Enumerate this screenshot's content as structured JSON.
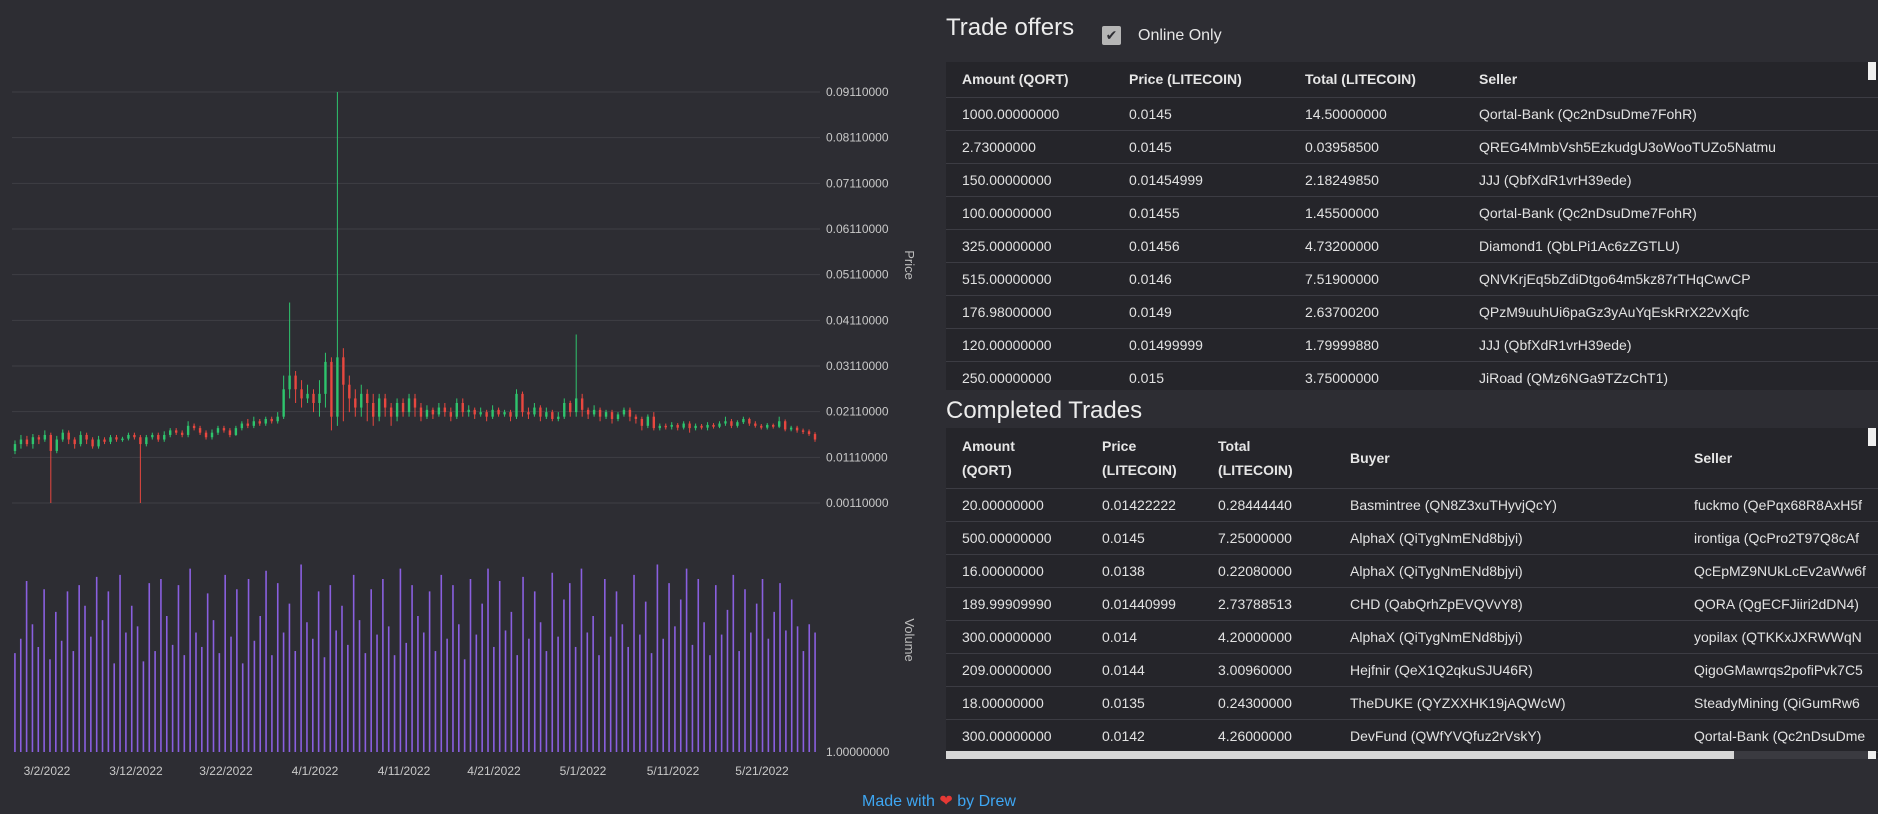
{
  "chart_data": {
    "type": "candlestick",
    "x_ticks": [
      "3/2/2022",
      "3/12/2022",
      "3/22/2022",
      "4/1/2022",
      "4/11/2022",
      "4/21/2022",
      "5/1/2022",
      "5/11/2022",
      "5/21/2022"
    ],
    "price_axis": {
      "label": "Price",
      "ticks": [
        "0.09110000",
        "0.08110000",
        "0.07110000",
        "0.06110000",
        "0.05110000",
        "0.04110000",
        "0.03110000",
        "0.02110000",
        "0.01110000",
        "0.00110000"
      ],
      "range": [
        0.0011,
        0.0911
      ]
    },
    "volume_axis": {
      "label": "Volume",
      "ticks": [
        "1.00000000"
      ]
    },
    "colors": {
      "up": "#2ec46d",
      "down": "#e8473f",
      "volume": "#8a5fe0",
      "grid": "#3e3e45"
    },
    "candles": [
      {
        "o": 0.0125,
        "c": 0.014,
        "h": 0.0148,
        "l": 0.0118
      },
      {
        "o": 0.014,
        "c": 0.015,
        "h": 0.016,
        "l": 0.013
      },
      {
        "o": 0.015,
        "c": 0.014,
        "h": 0.0158,
        "l": 0.0135
      },
      {
        "o": 0.014,
        "c": 0.0155,
        "h": 0.0162,
        "l": 0.013
      },
      {
        "o": 0.0155,
        "c": 0.015,
        "h": 0.016,
        "l": 0.014
      },
      {
        "o": 0.015,
        "c": 0.016,
        "h": 0.017,
        "l": 0.0145
      },
      {
        "o": 0.016,
        "c": 0.0125,
        "h": 0.0165,
        "l": 0.0011
      },
      {
        "o": 0.0125,
        "c": 0.015,
        "h": 0.0158,
        "l": 0.012
      },
      {
        "o": 0.015,
        "c": 0.0165,
        "h": 0.0172,
        "l": 0.0145
      },
      {
        "o": 0.0165,
        "c": 0.015,
        "h": 0.017,
        "l": 0.014
      },
      {
        "o": 0.015,
        "c": 0.014,
        "h": 0.0155,
        "l": 0.013
      },
      {
        "o": 0.014,
        "c": 0.016,
        "h": 0.0168,
        "l": 0.0135
      },
      {
        "o": 0.016,
        "c": 0.015,
        "h": 0.0165,
        "l": 0.014
      },
      {
        "o": 0.015,
        "c": 0.0135,
        "h": 0.0155,
        "l": 0.013
      },
      {
        "o": 0.0135,
        "c": 0.015,
        "h": 0.0158,
        "l": 0.013
      },
      {
        "o": 0.015,
        "c": 0.0145,
        "h": 0.0155,
        "l": 0.014
      },
      {
        "o": 0.0145,
        "c": 0.0155,
        "h": 0.016,
        "l": 0.014
      },
      {
        "o": 0.0155,
        "c": 0.015,
        "h": 0.016,
        "l": 0.0145
      },
      {
        "o": 0.015,
        "c": 0.0152,
        "h": 0.0156,
        "l": 0.0145
      },
      {
        "o": 0.0152,
        "c": 0.016,
        "h": 0.0165,
        "l": 0.0148
      },
      {
        "o": 0.016,
        "c": 0.0155,
        "h": 0.0165,
        "l": 0.015
      },
      {
        "o": 0.0155,
        "c": 0.014,
        "h": 0.016,
        "l": 0.0011
      },
      {
        "o": 0.014,
        "c": 0.0155,
        "h": 0.016,
        "l": 0.0135
      },
      {
        "o": 0.0155,
        "c": 0.016,
        "h": 0.0165,
        "l": 0.015
      },
      {
        "o": 0.016,
        "c": 0.015,
        "h": 0.0165,
        "l": 0.0145
      },
      {
        "o": 0.015,
        "c": 0.016,
        "h": 0.0168,
        "l": 0.0145
      },
      {
        "o": 0.016,
        "c": 0.017,
        "h": 0.0175,
        "l": 0.0155
      },
      {
        "o": 0.017,
        "c": 0.0165,
        "h": 0.0175,
        "l": 0.016
      },
      {
        "o": 0.0165,
        "c": 0.016,
        "h": 0.017,
        "l": 0.0155
      },
      {
        "o": 0.016,
        "c": 0.018,
        "h": 0.019,
        "l": 0.0155
      },
      {
        "o": 0.018,
        "c": 0.0175,
        "h": 0.0185,
        "l": 0.017
      },
      {
        "o": 0.0175,
        "c": 0.0165,
        "h": 0.018,
        "l": 0.016
      },
      {
        "o": 0.0165,
        "c": 0.0155,
        "h": 0.017,
        "l": 0.015
      },
      {
        "o": 0.0155,
        "c": 0.0165,
        "h": 0.0172,
        "l": 0.015
      },
      {
        "o": 0.0165,
        "c": 0.0175,
        "h": 0.018,
        "l": 0.016
      },
      {
        "o": 0.0175,
        "c": 0.017,
        "h": 0.018,
        "l": 0.0165
      },
      {
        "o": 0.017,
        "c": 0.016,
        "h": 0.0175,
        "l": 0.0155
      },
      {
        "o": 0.016,
        "c": 0.0175,
        "h": 0.018,
        "l": 0.0158
      },
      {
        "o": 0.0175,
        "c": 0.0185,
        "h": 0.019,
        "l": 0.017
      },
      {
        "o": 0.0185,
        "c": 0.018,
        "h": 0.0195,
        "l": 0.0175
      },
      {
        "o": 0.018,
        "c": 0.019,
        "h": 0.02,
        "l": 0.0175
      },
      {
        "o": 0.019,
        "c": 0.0185,
        "h": 0.0195,
        "l": 0.018
      },
      {
        "o": 0.0185,
        "c": 0.0195,
        "h": 0.02,
        "l": 0.018
      },
      {
        "o": 0.0195,
        "c": 0.019,
        "h": 0.02,
        "l": 0.0185
      },
      {
        "o": 0.019,
        "c": 0.02,
        "h": 0.021,
        "l": 0.0185
      },
      {
        "o": 0.02,
        "c": 0.026,
        "h": 0.029,
        "l": 0.0195
      },
      {
        "o": 0.026,
        "c": 0.029,
        "h": 0.045,
        "l": 0.024
      },
      {
        "o": 0.029,
        "c": 0.026,
        "h": 0.03,
        "l": 0.023
      },
      {
        "o": 0.026,
        "c": 0.024,
        "h": 0.028,
        "l": 0.022
      },
      {
        "o": 0.024,
        "c": 0.025,
        "h": 0.027,
        "l": 0.023
      },
      {
        "o": 0.025,
        "c": 0.023,
        "h": 0.026,
        "l": 0.021
      },
      {
        "o": 0.023,
        "c": 0.025,
        "h": 0.028,
        "l": 0.02
      },
      {
        "o": 0.025,
        "c": 0.032,
        "h": 0.034,
        "l": 0.022
      },
      {
        "o": 0.032,
        "c": 0.02,
        "h": 0.033,
        "l": 0.017
      },
      {
        "o": 0.02,
        "c": 0.033,
        "h": 0.0911,
        "l": 0.018
      },
      {
        "o": 0.033,
        "c": 0.027,
        "h": 0.035,
        "l": 0.019
      },
      {
        "o": 0.027,
        "c": 0.024,
        "h": 0.029,
        "l": 0.021
      },
      {
        "o": 0.024,
        "c": 0.022,
        "h": 0.026,
        "l": 0.02
      },
      {
        "o": 0.022,
        "c": 0.025,
        "h": 0.027,
        "l": 0.02
      },
      {
        "o": 0.025,
        "c": 0.023,
        "h": 0.026,
        "l": 0.019
      },
      {
        "o": 0.023,
        "c": 0.02,
        "h": 0.025,
        "l": 0.018
      },
      {
        "o": 0.02,
        "c": 0.024,
        "h": 0.025,
        "l": 0.019
      },
      {
        "o": 0.024,
        "c": 0.022,
        "h": 0.025,
        "l": 0.02
      },
      {
        "o": 0.022,
        "c": 0.02,
        "h": 0.023,
        "l": 0.018
      },
      {
        "o": 0.02,
        "c": 0.023,
        "h": 0.024,
        "l": 0.019
      },
      {
        "o": 0.023,
        "c": 0.021,
        "h": 0.024,
        "l": 0.02
      },
      {
        "o": 0.021,
        "c": 0.024,
        "h": 0.025,
        "l": 0.02
      },
      {
        "o": 0.024,
        "c": 0.022,
        "h": 0.025,
        "l": 0.02
      },
      {
        "o": 0.022,
        "c": 0.02,
        "h": 0.023,
        "l": 0.019
      },
      {
        "o": 0.02,
        "c": 0.0215,
        "h": 0.0225,
        "l": 0.0195
      },
      {
        "o": 0.0215,
        "c": 0.0205,
        "h": 0.022,
        "l": 0.0195
      },
      {
        "o": 0.0205,
        "c": 0.022,
        "h": 0.023,
        "l": 0.02
      },
      {
        "o": 0.022,
        "c": 0.021,
        "h": 0.023,
        "l": 0.02
      },
      {
        "o": 0.021,
        "c": 0.02,
        "h": 0.022,
        "l": 0.019
      },
      {
        "o": 0.02,
        "c": 0.023,
        "h": 0.024,
        "l": 0.0195
      },
      {
        "o": 0.023,
        "c": 0.021,
        "h": 0.024,
        "l": 0.02
      },
      {
        "o": 0.021,
        "c": 0.0215,
        "h": 0.0225,
        "l": 0.02
      },
      {
        "o": 0.0215,
        "c": 0.0205,
        "h": 0.022,
        "l": 0.0195
      },
      {
        "o": 0.0205,
        "c": 0.021,
        "h": 0.022,
        "l": 0.02
      },
      {
        "o": 0.021,
        "c": 0.02,
        "h": 0.0215,
        "l": 0.019
      },
      {
        "o": 0.02,
        "c": 0.0215,
        "h": 0.0225,
        "l": 0.0195
      },
      {
        "o": 0.0215,
        "c": 0.0205,
        "h": 0.022,
        "l": 0.02
      },
      {
        "o": 0.0205,
        "c": 0.021,
        "h": 0.0215,
        "l": 0.02
      },
      {
        "o": 0.021,
        "c": 0.02,
        "h": 0.0215,
        "l": 0.019
      },
      {
        "o": 0.02,
        "c": 0.025,
        "h": 0.026,
        "l": 0.0195
      },
      {
        "o": 0.025,
        "c": 0.021,
        "h": 0.0255,
        "l": 0.02
      },
      {
        "o": 0.021,
        "c": 0.0205,
        "h": 0.022,
        "l": 0.0195
      },
      {
        "o": 0.0205,
        "c": 0.022,
        "h": 0.023,
        "l": 0.02
      },
      {
        "o": 0.022,
        "c": 0.02,
        "h": 0.0225,
        "l": 0.019
      },
      {
        "o": 0.02,
        "c": 0.021,
        "h": 0.022,
        "l": 0.0195
      },
      {
        "o": 0.021,
        "c": 0.0195,
        "h": 0.0215,
        "l": 0.019
      },
      {
        "o": 0.0195,
        "c": 0.02,
        "h": 0.021,
        "l": 0.019
      },
      {
        "o": 0.02,
        "c": 0.023,
        "h": 0.024,
        "l": 0.0195
      },
      {
        "o": 0.023,
        "c": 0.021,
        "h": 0.0235,
        "l": 0.02
      },
      {
        "o": 0.021,
        "c": 0.024,
        "h": 0.038,
        "l": 0.02
      },
      {
        "o": 0.024,
        "c": 0.0215,
        "h": 0.025,
        "l": 0.02
      },
      {
        "o": 0.0215,
        "c": 0.0205,
        "h": 0.022,
        "l": 0.0195
      },
      {
        "o": 0.0205,
        "c": 0.0215,
        "h": 0.0225,
        "l": 0.02
      },
      {
        "o": 0.0215,
        "c": 0.02,
        "h": 0.022,
        "l": 0.019
      },
      {
        "o": 0.02,
        "c": 0.021,
        "h": 0.0215,
        "l": 0.0195
      },
      {
        "o": 0.021,
        "c": 0.0195,
        "h": 0.0215,
        "l": 0.0185
      },
      {
        "o": 0.0195,
        "c": 0.0205,
        "h": 0.021,
        "l": 0.019
      },
      {
        "o": 0.0205,
        "c": 0.0215,
        "h": 0.022,
        "l": 0.02
      },
      {
        "o": 0.0215,
        "c": 0.02,
        "h": 0.022,
        "l": 0.019
      },
      {
        "o": 0.02,
        "c": 0.0195,
        "h": 0.0205,
        "l": 0.0185
      },
      {
        "o": 0.0195,
        "c": 0.018,
        "h": 0.02,
        "l": 0.017
      },
      {
        "o": 0.018,
        "c": 0.02,
        "h": 0.0205,
        "l": 0.0175
      },
      {
        "o": 0.02,
        "c": 0.0175,
        "h": 0.021,
        "l": 0.017
      },
      {
        "o": 0.0175,
        "c": 0.018,
        "h": 0.0185,
        "l": 0.017
      },
      {
        "o": 0.018,
        "c": 0.0178,
        "h": 0.0185,
        "l": 0.0172
      },
      {
        "o": 0.0178,
        "c": 0.0182,
        "h": 0.0188,
        "l": 0.0172
      },
      {
        "o": 0.0182,
        "c": 0.0176,
        "h": 0.0186,
        "l": 0.017
      },
      {
        "o": 0.0176,
        "c": 0.0185,
        "h": 0.019,
        "l": 0.0172
      },
      {
        "o": 0.0185,
        "c": 0.0175,
        "h": 0.019,
        "l": 0.0165
      },
      {
        "o": 0.0175,
        "c": 0.018,
        "h": 0.0185,
        "l": 0.017
      },
      {
        "o": 0.018,
        "c": 0.0176,
        "h": 0.0184,
        "l": 0.0172
      },
      {
        "o": 0.0176,
        "c": 0.0182,
        "h": 0.0188,
        "l": 0.017
      },
      {
        "o": 0.0182,
        "c": 0.0178,
        "h": 0.0186,
        "l": 0.0174
      },
      {
        "o": 0.0178,
        "c": 0.0185,
        "h": 0.019,
        "l": 0.0175
      },
      {
        "o": 0.0185,
        "c": 0.019,
        "h": 0.02,
        "l": 0.018
      },
      {
        "o": 0.019,
        "c": 0.018,
        "h": 0.0195,
        "l": 0.0175
      },
      {
        "o": 0.018,
        "c": 0.0188,
        "h": 0.0192,
        "l": 0.0176
      },
      {
        "o": 0.0188,
        "c": 0.0195,
        "h": 0.02,
        "l": 0.0184
      },
      {
        "o": 0.0195,
        "c": 0.0185,
        "h": 0.0198,
        "l": 0.018
      },
      {
        "o": 0.0185,
        "c": 0.018,
        "h": 0.019,
        "l": 0.0176
      },
      {
        "o": 0.018,
        "c": 0.0176,
        "h": 0.0184,
        "l": 0.0172
      },
      {
        "o": 0.0176,
        "c": 0.0182,
        "h": 0.0186,
        "l": 0.0172
      },
      {
        "o": 0.0182,
        "c": 0.0178,
        "h": 0.0185,
        "l": 0.0174
      },
      {
        "o": 0.0178,
        "c": 0.019,
        "h": 0.02,
        "l": 0.0175
      },
      {
        "o": 0.019,
        "c": 0.0172,
        "h": 0.0194,
        "l": 0.0168
      },
      {
        "o": 0.0172,
        "c": 0.0176,
        "h": 0.018,
        "l": 0.0168
      },
      {
        "o": 0.0176,
        "c": 0.017,
        "h": 0.018,
        "l": 0.0165
      },
      {
        "o": 0.017,
        "c": 0.0168,
        "h": 0.0174,
        "l": 0.0162
      },
      {
        "o": 0.0168,
        "c": 0.0162,
        "h": 0.0172,
        "l": 0.0158
      },
      {
        "o": 0.0162,
        "c": 0.015,
        "h": 0.0166,
        "l": 0.0145
      }
    ],
    "volumes": [
      0.48,
      0.55,
      0.83,
      0.62,
      0.51,
      0.79,
      0.45,
      0.68,
      0.54,
      0.78,
      0.49,
      0.81,
      0.71,
      0.56,
      0.85,
      0.64,
      0.78,
      0.43,
      0.86,
      0.58,
      0.71,
      0.61,
      0.44,
      0.82,
      0.49,
      0.84,
      0.66,
      0.52,
      0.81,
      0.47,
      0.89,
      0.58,
      0.51,
      0.77,
      0.64,
      0.48,
      0.86,
      0.56,
      0.79,
      0.43,
      0.84,
      0.54,
      0.66,
      0.88,
      0.47,
      0.82,
      0.58,
      0.72,
      0.49,
      0.91,
      0.63,
      0.55,
      0.78,
      0.46,
      0.81,
      0.59,
      0.71,
      0.52,
      0.86,
      0.64,
      0.48,
      0.79,
      0.57,
      0.84,
      0.61,
      0.47,
      0.89,
      0.53,
      0.81,
      0.66,
      0.58,
      0.78,
      0.49,
      0.86,
      0.55,
      0.81,
      0.62,
      0.45,
      0.84,
      0.57,
      0.72,
      0.89,
      0.51,
      0.83,
      0.59,
      0.68,
      0.47,
      0.85,
      0.55,
      0.78,
      0.63,
      0.49,
      0.87,
      0.56,
      0.74,
      0.82,
      0.51,
      0.89,
      0.58,
      0.66,
      0.47,
      0.84,
      0.56,
      0.78,
      0.62,
      0.51,
      0.86,
      0.57,
      0.73,
      0.48,
      0.91,
      0.55,
      0.82,
      0.61,
      0.74,
      0.89,
      0.52,
      0.84,
      0.63,
      0.47,
      0.81,
      0.57,
      0.69,
      0.86,
      0.49,
      0.79,
      0.58,
      0.72,
      0.84,
      0.55,
      0.68,
      0.82,
      0.59,
      0.74,
      0.61,
      0.49,
      0.62,
      0.58
    ]
  },
  "trade_offers": {
    "title": "Trade offers",
    "online_only_label": "Online Only",
    "online_only_checked": true,
    "columns": [
      "Amount (QORT)",
      "Price (LITECOIN)",
      "Total (LITECOIN)",
      "Seller"
    ],
    "rows": [
      [
        "1000.00000000",
        "0.0145",
        "14.50000000",
        "Qortal-Bank (Qc2nDsuDme7FohR)"
      ],
      [
        "2.73000000",
        "0.0145",
        "0.03958500",
        "QREG4MmbVsh5EzkudgU3oWooTUZo5Natmu"
      ],
      [
        "150.00000000",
        "0.01454999",
        "2.18249850",
        "JJJ (QbfXdR1vrH39ede)"
      ],
      [
        "100.00000000",
        "0.01455",
        "1.45500000",
        "Qortal-Bank (Qc2nDsuDme7FohR)"
      ],
      [
        "325.00000000",
        "0.01456",
        "4.73200000",
        "Diamond1 (QbLPi1Ac6zZGTLU)"
      ],
      [
        "515.00000000",
        "0.0146",
        "7.51900000",
        "QNVKrjEq5bZdiDtgo64m5kz87rTHqCwvCP"
      ],
      [
        "176.98000000",
        "0.0149",
        "2.63700200",
        "QPzM9uuhUi6paGz3yAuYqEskRrX22vXqfc"
      ],
      [
        "120.00000000",
        "0.01499999",
        "1.79999880",
        "JJJ (QbfXdR1vrH39ede)"
      ],
      [
        "250.00000000",
        "0.015",
        "3.75000000",
        "JiRoad (QMz6NGa9TZzChT1)"
      ]
    ]
  },
  "completed_trades": {
    "title": "Completed Trades",
    "columns": [
      {
        "l1": "Amount",
        "l2": "(QORT)"
      },
      {
        "l1": "Price",
        "l2": "(LITECOIN)"
      },
      {
        "l1": "Total",
        "l2": "(LITECOIN)"
      },
      {
        "l1": "Buyer",
        "l2": ""
      },
      {
        "l1": "Seller",
        "l2": ""
      }
    ],
    "rows": [
      [
        "20.00000000",
        "0.01422222",
        "0.28444440",
        "Basmintree (QN8Z3xuTHyvjQcY)",
        "fuckmo (QePqx68R8AxH5f"
      ],
      [
        "500.00000000",
        "0.0145",
        "7.25000000",
        "AlphaX (QiTygNmENd8bjyi)",
        "irontiga (QcPro2T97Q8cAf"
      ],
      [
        "16.00000000",
        "0.0138",
        "0.22080000",
        "AlphaX (QiTygNmENd8bjyi)",
        "QcEpMZ9NUkLcEv2aWw6f"
      ],
      [
        "189.99909990",
        "0.01440999",
        "2.73788513",
        "CHD (QabQrhZpEVQVvY8)",
        "QORA (QgECFJiiri2dDN4)"
      ],
      [
        "300.00000000",
        "0.014",
        "4.20000000",
        "AlphaX (QiTygNmENd8bjyi)",
        "yopilax (QTKKxJXRWWqN"
      ],
      [
        "209.00000000",
        "0.0144",
        "3.00960000",
        "Hejfnir (QeX1Q2qkuSJU46R)",
        "QigoGMawrqs2pofiPvk7C5"
      ],
      [
        "18.00000000",
        "0.0135",
        "0.24300000",
        "TheDUKE (QYZXXHK19jAQWcW)",
        "SteadyMining (QiGumRw6"
      ],
      [
        "300.00000000",
        "0.0142",
        "4.26000000",
        "DevFund (QWfYVQfuz2rVskY)",
        "Qortal-Bank (Qc2nDsuDme"
      ]
    ]
  },
  "footer": {
    "made_with": "Made with",
    "heart": "❤",
    "by": "by Drew"
  }
}
